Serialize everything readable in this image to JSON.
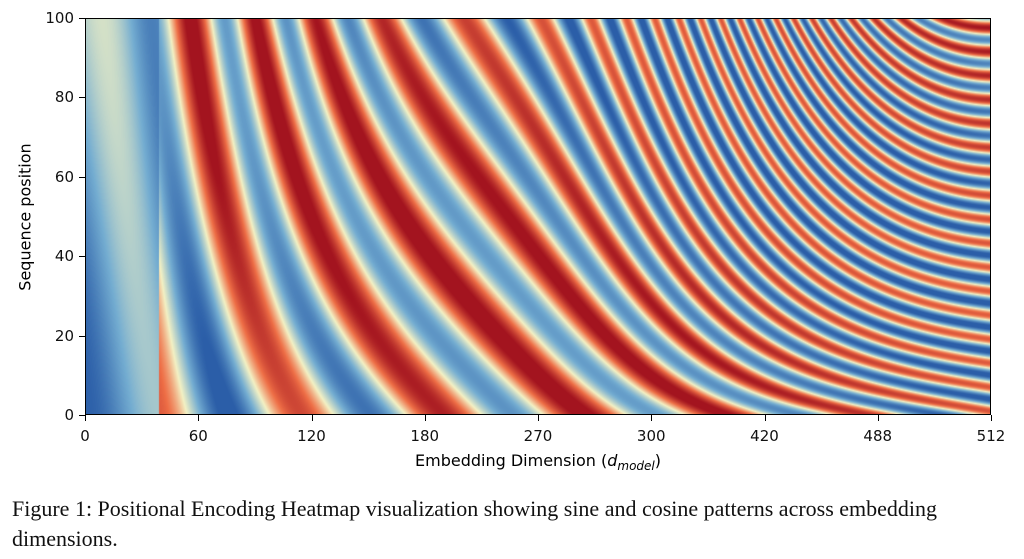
{
  "chart_data": {
    "type": "heatmap",
    "title": "",
    "xlabel_main": "Embedding Dimension (",
    "xlabel_var": "d",
    "xlabel_sub": "model",
    "xlabel_end": ")",
    "ylabel": "Sequence position",
    "xticks": [
      "0",
      "60",
      "120",
      "180",
      "270",
      "300",
      "420",
      "488",
      "512"
    ],
    "yticks": [
      "0",
      "20",
      "40",
      "60",
      "80",
      "100"
    ],
    "ylim": [
      0,
      100
    ],
    "xlim": [
      0,
      512
    ],
    "colormap": "RdYlBu_r",
    "value_range": [
      -1,
      1
    ],
    "colors": {
      "low": "#2b5ea8",
      "mid": "#f3f1c4",
      "high": "#a3141f"
    }
  },
  "caption": {
    "text": "Figure 1: Positional Encoding Heatmap visualization showing sine and cosine patterns across embedding dimensions."
  }
}
